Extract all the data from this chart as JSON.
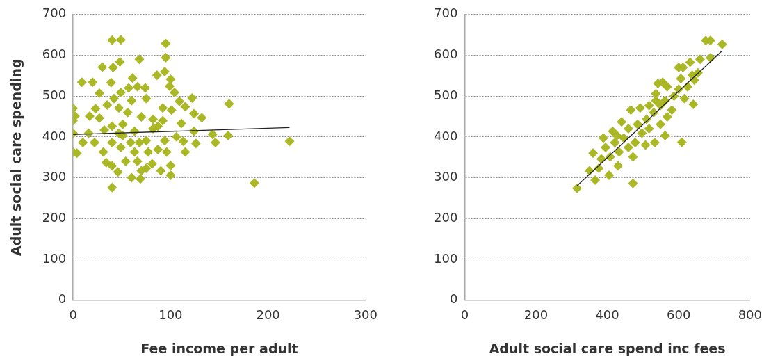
{
  "chart_data": [
    {
      "type": "scatter",
      "xlabel": "Fee income per adult",
      "ylabel": "Adult social care spending",
      "xlim": [
        0,
        300
      ],
      "xticks": [
        0,
        100,
        200,
        300
      ],
      "ylim": [
        0,
        700
      ],
      "yticks": [
        0,
        100,
        200,
        300,
        400,
        500,
        600,
        700
      ],
      "grid": "y",
      "series": [
        {
          "type": "scatter",
          "color": "#aab826",
          "marker": "diamond",
          "x": [
            40,
            49,
            95,
            95,
            68,
            48,
            30,
            41,
            94,
            86,
            61,
            100,
            9,
            20,
            39,
            99,
            27,
            104,
            122,
            160,
            109,
            0,
            2,
            0,
            132,
            124,
            111,
            0,
            159,
            143,
            146,
            222,
            126,
            115,
            100,
            100,
            90,
            186,
            40,
            0,
            4,
            10,
            22,
            16,
            17,
            23,
            27,
            35,
            42,
            49,
            57,
            66,
            74,
            60,
            75,
            92,
            101,
            115,
            124,
            106,
            113,
            96,
            34,
            31,
            40,
            46,
            60,
            69,
            75,
            81,
            49,
            63,
            75,
            63,
            51,
            40,
            32,
            82,
            92,
            70,
            56,
            47,
            87,
            51,
            59,
            68,
            54,
            66,
            70,
            40,
            87,
            94,
            77,
            47,
            82
          ],
          "values": [
            637,
            638,
            629,
            594,
            590,
            584,
            571,
            570,
            560,
            551,
            544,
            541,
            534,
            534,
            533,
            524,
            507,
            509,
            495,
            481,
            487,
            470,
            451,
            440,
            447,
            457,
            433,
            409,
            403,
            406,
            386,
            389,
            384,
            363,
            330,
            306,
            317,
            287,
            276,
            363,
            360,
            386,
            386,
            409,
            451,
            469,
            446,
            478,
            494,
            509,
            520,
            523,
            520,
            489,
            494,
            471,
            466,
            474,
            414,
            400,
            389,
            363,
            337,
            363,
            329,
            314,
            300,
            297,
            323,
            334,
            374,
            363,
            391,
            414,
            431,
            426,
            417,
            443,
            440,
            449,
            460,
            471,
            426,
            403,
            386,
            386,
            340,
            340,
            317,
            386,
            369,
            391,
            363,
            409,
            420
          ]
        },
        {
          "type": "line",
          "color": "#222222",
          "marker": "none",
          "x": [
            0,
            222
          ],
          "values": [
            406,
            423
          ]
        }
      ]
    },
    {
      "type": "scatter",
      "xlabel": "Adult social care spend inc fees",
      "xlim": [
        0,
        800
      ],
      "xticks": [
        0,
        200,
        400,
        600,
        800
      ],
      "ylim": [
        0,
        700
      ],
      "yticks": [
        0,
        100,
        200,
        300,
        400,
        500,
        600,
        700
      ],
      "grid": "y",
      "series": [
        {
          "type": "scatter",
          "color": "#aab826",
          "marker": "diamond",
          "x": [
            315,
            472,
            609,
            641,
            676,
            689,
            722,
            689,
            660,
            632,
            600,
            612,
            606,
            654,
            638,
            644,
            625,
            542,
            555,
            616,
            360,
            350,
            366,
            405,
            430,
            472,
            383,
            389,
            415,
            440,
            466,
            492,
            517,
            536,
            568,
            587,
            581,
            568,
            549,
            562,
            533,
            507,
            478,
            459,
            433,
            408,
            376,
            459,
            485,
            510,
            530,
            549,
            446,
            427,
            497,
            517,
            536,
            562,
            600,
            395,
            421
          ],
          "values": [
            274,
            286,
            387,
            480,
            636,
            636,
            627,
            594,
            590,
            583,
            570,
            570,
            543,
            557,
            551,
            539,
            523,
            531,
            534,
            494,
            360,
            317,
            294,
            306,
            329,
            351,
            346,
            397,
            414,
            437,
            466,
            471,
            477,
            506,
            523,
            500,
            466,
            449,
            431,
            403,
            386,
            380,
            386,
            374,
            363,
            351,
            323,
            420,
            431,
            443,
            460,
            477,
            397,
            403,
            409,
            420,
            489,
            489,
            517,
            374,
            386
          ]
        },
        {
          "type": "line",
          "color": "#222222",
          "marker": "none",
          "x": [
            315,
            722
          ],
          "values": [
            280,
            611
          ]
        }
      ]
    }
  ]
}
